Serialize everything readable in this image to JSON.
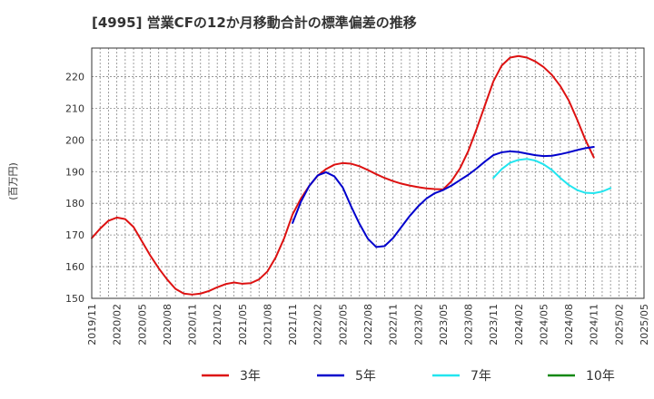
{
  "chart_data": {
    "type": "line",
    "title": "[4995]  営業CFの12か月移動合計の標準偏差の推移",
    "ylabel": "(百万円)",
    "xlabel": "",
    "ylim": [
      150,
      229
    ],
    "yticks": [
      150,
      160,
      170,
      180,
      190,
      200,
      210,
      220
    ],
    "x_ticks": [
      "2019/11",
      "2020/02",
      "2020/05",
      "2020/08",
      "2020/11",
      "2021/02",
      "2021/05",
      "2021/08",
      "2021/11",
      "2022/02",
      "2022/05",
      "2022/08",
      "2022/11",
      "2023/02",
      "2023/05",
      "2023/08",
      "2023/11",
      "2024/02",
      "2024/05",
      "2024/08",
      "2024/11",
      "2025/02",
      "2025/05"
    ],
    "x_domain": [
      "2019-11",
      "2025-05"
    ],
    "grid": true,
    "legend_position": "bottom",
    "series": [
      {
        "name": "3年",
        "color": "#dd1111",
        "points": [
          [
            "2019-11",
            169.0
          ],
          [
            "2019-12",
            172.0
          ],
          [
            "2020-01",
            174.5
          ],
          [
            "2020-02",
            175.5
          ],
          [
            "2020-03",
            175.0
          ],
          [
            "2020-04",
            172.5
          ],
          [
            "2020-05",
            168.0
          ],
          [
            "2020-06",
            163.5
          ],
          [
            "2020-07",
            159.5
          ],
          [
            "2020-08",
            156.0
          ],
          [
            "2020-09",
            153.0
          ],
          [
            "2020-10",
            151.5
          ],
          [
            "2020-11",
            151.2
          ],
          [
            "2020-12",
            151.5
          ],
          [
            "2021-01",
            152.3
          ],
          [
            "2021-02",
            153.5
          ],
          [
            "2021-03",
            154.5
          ],
          [
            "2021-04",
            155.0
          ],
          [
            "2021-05",
            154.6
          ],
          [
            "2021-06",
            154.8
          ],
          [
            "2021-07",
            156.0
          ],
          [
            "2021-08",
            158.5
          ],
          [
            "2021-09",
            163.0
          ],
          [
            "2021-10",
            169.0
          ],
          [
            "2021-11",
            176.5
          ],
          [
            "2021-12",
            181.5
          ],
          [
            "2022-01",
            185.5
          ],
          [
            "2022-02",
            188.7
          ],
          [
            "2022-03",
            190.8
          ],
          [
            "2022-04",
            192.2
          ],
          [
            "2022-05",
            192.7
          ],
          [
            "2022-06",
            192.5
          ],
          [
            "2022-07",
            191.7
          ],
          [
            "2022-08",
            190.5
          ],
          [
            "2022-09",
            189.2
          ],
          [
            "2022-10",
            188.0
          ],
          [
            "2022-11",
            187.0
          ],
          [
            "2022-12",
            186.2
          ],
          [
            "2023-01",
            185.6
          ],
          [
            "2023-02",
            185.1
          ],
          [
            "2023-03",
            184.7
          ],
          [
            "2023-04",
            184.5
          ],
          [
            "2023-05",
            184.4
          ],
          [
            "2023-06",
            187.0
          ],
          [
            "2023-07",
            191.0
          ],
          [
            "2023-08",
            196.5
          ],
          [
            "2023-09",
            203.5
          ],
          [
            "2023-10",
            211.0
          ],
          [
            "2023-11",
            218.5
          ],
          [
            "2023-12",
            223.5
          ],
          [
            "2024-01",
            226.0
          ],
          [
            "2024-02",
            226.5
          ],
          [
            "2024-03",
            226.0
          ],
          [
            "2024-04",
            224.8
          ],
          [
            "2024-05",
            223.0
          ],
          [
            "2024-06",
            220.5
          ],
          [
            "2024-07",
            217.0
          ],
          [
            "2024-08",
            212.5
          ],
          [
            "2024-09",
            206.5
          ],
          [
            "2024-10",
            200.0
          ],
          [
            "2024-11",
            194.5
          ]
        ]
      },
      {
        "name": "5年",
        "color": "#0000cc",
        "points": [
          [
            "2021-11",
            173.8
          ],
          [
            "2021-12",
            180.5
          ],
          [
            "2022-01",
            185.5
          ],
          [
            "2022-02",
            188.8
          ],
          [
            "2022-03",
            189.8
          ],
          [
            "2022-04",
            188.5
          ],
          [
            "2022-05",
            185.0
          ],
          [
            "2022-06",
            179.0
          ],
          [
            "2022-07",
            173.5
          ],
          [
            "2022-08",
            168.8
          ],
          [
            "2022-09",
            166.2
          ],
          [
            "2022-10",
            166.5
          ],
          [
            "2022-11",
            169.0
          ],
          [
            "2022-12",
            172.5
          ],
          [
            "2023-01",
            176.0
          ],
          [
            "2023-02",
            179.0
          ],
          [
            "2023-03",
            181.5
          ],
          [
            "2023-04",
            183.2
          ],
          [
            "2023-05",
            184.2
          ],
          [
            "2023-06",
            185.6
          ],
          [
            "2023-07",
            187.3
          ],
          [
            "2023-08",
            189.0
          ],
          [
            "2023-09",
            191.0
          ],
          [
            "2023-10",
            193.2
          ],
          [
            "2023-11",
            195.2
          ],
          [
            "2023-12",
            196.1
          ],
          [
            "2024-01",
            196.4
          ],
          [
            "2024-02",
            196.2
          ],
          [
            "2024-03",
            195.7
          ],
          [
            "2024-04",
            195.2
          ],
          [
            "2024-05",
            194.9
          ],
          [
            "2024-06",
            195.0
          ],
          [
            "2024-07",
            195.5
          ],
          [
            "2024-08",
            196.1
          ],
          [
            "2024-09",
            196.8
          ],
          [
            "2024-10",
            197.4
          ],
          [
            "2024-11",
            197.8
          ]
        ]
      },
      {
        "name": "7年",
        "color": "#22e5ef",
        "points": [
          [
            "2023-11",
            188.0
          ],
          [
            "2023-12",
            190.8
          ],
          [
            "2024-01",
            192.8
          ],
          [
            "2024-02",
            193.7
          ],
          [
            "2024-03",
            194.0
          ],
          [
            "2024-04",
            193.5
          ],
          [
            "2024-05",
            192.3
          ],
          [
            "2024-06",
            190.5
          ],
          [
            "2024-07",
            188.0
          ],
          [
            "2024-08",
            185.8
          ],
          [
            "2024-09",
            184.2
          ],
          [
            "2024-10",
            183.3
          ],
          [
            "2024-11",
            183.2
          ],
          [
            "2024-12",
            183.7
          ],
          [
            "2025-01",
            184.8
          ]
        ]
      },
      {
        "name": "10年",
        "color": "#118811",
        "points": []
      }
    ]
  }
}
